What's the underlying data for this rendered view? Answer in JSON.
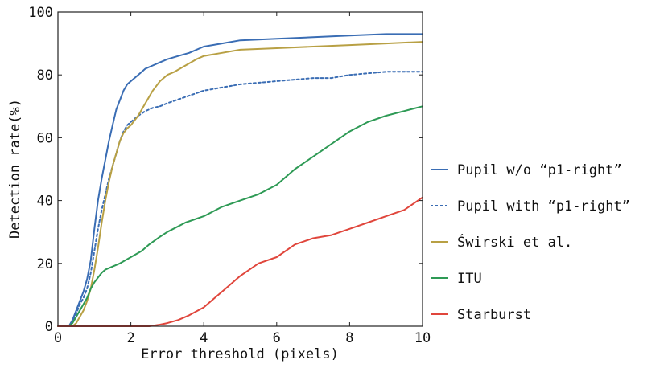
{
  "chart_data": {
    "type": "line",
    "xlabel": "Error threshold (pixels)",
    "ylabel": "Detection rate(%)",
    "xlim": [
      0,
      10
    ],
    "ylim": [
      0,
      100
    ],
    "xticks": [
      "0",
      "2",
      "4",
      "6",
      "8",
      "10"
    ],
    "yticks": [
      "0",
      "20",
      "40",
      "60",
      "80",
      "100"
    ],
    "legend_position": "right",
    "series": [
      {
        "name": "Pupil w/o “p1-right”",
        "color": "#3a6db4",
        "dashed": false,
        "points": [
          [
            0,
            0
          ],
          [
            0.3,
            0
          ],
          [
            0.4,
            2
          ],
          [
            0.5,
            5
          ],
          [
            0.6,
            8
          ],
          [
            0.7,
            11
          ],
          [
            0.8,
            15
          ],
          [
            0.9,
            21
          ],
          [
            1.0,
            31
          ],
          [
            1.1,
            40
          ],
          [
            1.2,
            47
          ],
          [
            1.3,
            53
          ],
          [
            1.4,
            59
          ],
          [
            1.5,
            64
          ],
          [
            1.6,
            69
          ],
          [
            1.7,
            72
          ],
          [
            1.8,
            75
          ],
          [
            1.9,
            77
          ],
          [
            2.0,
            78
          ],
          [
            2.2,
            80
          ],
          [
            2.4,
            82
          ],
          [
            2.6,
            83
          ],
          [
            2.8,
            84
          ],
          [
            3.0,
            85
          ],
          [
            3.3,
            86
          ],
          [
            3.6,
            87
          ],
          [
            4.0,
            89
          ],
          [
            4.5,
            90
          ],
          [
            5.0,
            91
          ],
          [
            6.0,
            91.5
          ],
          [
            7.0,
            92
          ],
          [
            8.0,
            92.5
          ],
          [
            9.0,
            93
          ],
          [
            10.0,
            93
          ]
        ]
      },
      {
        "name": "Pupil with “p1-right”",
        "color": "#3a6db4",
        "dashed": true,
        "points": [
          [
            0,
            0
          ],
          [
            0.3,
            0
          ],
          [
            0.4,
            1.5
          ],
          [
            0.5,
            4
          ],
          [
            0.6,
            7
          ],
          [
            0.7,
            9
          ],
          [
            0.8,
            12
          ],
          [
            0.9,
            17
          ],
          [
            1.0,
            24
          ],
          [
            1.1,
            31
          ],
          [
            1.2,
            37
          ],
          [
            1.3,
            42
          ],
          [
            1.4,
            47
          ],
          [
            1.5,
            51
          ],
          [
            1.6,
            55
          ],
          [
            1.7,
            59
          ],
          [
            1.8,
            62
          ],
          [
            1.9,
            64
          ],
          [
            2.0,
            65
          ],
          [
            2.2,
            67
          ],
          [
            2.4,
            68.5
          ],
          [
            2.6,
            69.5
          ],
          [
            2.8,
            70
          ],
          [
            3.0,
            71
          ],
          [
            3.5,
            73
          ],
          [
            4.0,
            75
          ],
          [
            4.5,
            76
          ],
          [
            5.0,
            77
          ],
          [
            6.0,
            78
          ],
          [
            7.0,
            79
          ],
          [
            7.5,
            79
          ],
          [
            8.0,
            80
          ],
          [
            9.0,
            81
          ],
          [
            10.0,
            81
          ]
        ]
      },
      {
        "name": "Świrski et al.",
        "color": "#b8a044",
        "dashed": false,
        "points": [
          [
            0,
            0
          ],
          [
            0.4,
            0
          ],
          [
            0.5,
            1
          ],
          [
            0.6,
            3
          ],
          [
            0.7,
            5
          ],
          [
            0.8,
            8
          ],
          [
            0.9,
            12
          ],
          [
            1.0,
            18
          ],
          [
            1.1,
            25
          ],
          [
            1.2,
            33
          ],
          [
            1.3,
            40
          ],
          [
            1.4,
            46
          ],
          [
            1.5,
            51
          ],
          [
            1.6,
            55
          ],
          [
            1.7,
            59
          ],
          [
            1.8,
            61.5
          ],
          [
            1.9,
            63
          ],
          [
            2.0,
            64
          ],
          [
            2.2,
            67
          ],
          [
            2.4,
            71
          ],
          [
            2.6,
            75
          ],
          [
            2.8,
            78
          ],
          [
            3.0,
            80
          ],
          [
            3.2,
            81
          ],
          [
            3.5,
            83
          ],
          [
            3.8,
            85
          ],
          [
            4.0,
            86
          ],
          [
            4.5,
            87
          ],
          [
            5.0,
            88
          ],
          [
            6.0,
            88.5
          ],
          [
            7.0,
            89
          ],
          [
            8.0,
            89.5
          ],
          [
            9.0,
            90
          ],
          [
            10.0,
            90.5
          ]
        ]
      },
      {
        "name": "ITU",
        "color": "#2e9a55",
        "dashed": false,
        "points": [
          [
            0,
            0
          ],
          [
            0.3,
            0
          ],
          [
            0.4,
            1
          ],
          [
            0.5,
            3
          ],
          [
            0.6,
            5
          ],
          [
            0.7,
            7
          ],
          [
            0.8,
            9
          ],
          [
            0.9,
            12
          ],
          [
            1.0,
            14
          ],
          [
            1.1,
            15.5
          ],
          [
            1.2,
            17
          ],
          [
            1.3,
            18
          ],
          [
            1.5,
            19
          ],
          [
            1.7,
            20
          ],
          [
            2.0,
            22
          ],
          [
            2.3,
            24
          ],
          [
            2.5,
            26
          ],
          [
            2.8,
            28.5
          ],
          [
            3.0,
            30
          ],
          [
            3.5,
            33
          ],
          [
            4.0,
            35
          ],
          [
            4.5,
            38
          ],
          [
            5.0,
            40
          ],
          [
            5.5,
            42
          ],
          [
            6.0,
            45
          ],
          [
            6.5,
            50
          ],
          [
            7.0,
            54
          ],
          [
            7.5,
            58
          ],
          [
            8.0,
            62
          ],
          [
            8.5,
            65
          ],
          [
            9.0,
            67
          ],
          [
            9.5,
            68.5
          ],
          [
            10.0,
            70
          ]
        ]
      },
      {
        "name": "Starburst",
        "color": "#e0463c",
        "dashed": false,
        "points": [
          [
            0,
            0
          ],
          [
            2.5,
            0
          ],
          [
            2.8,
            0.5
          ],
          [
            3.0,
            1
          ],
          [
            3.3,
            2
          ],
          [
            3.6,
            3.5
          ],
          [
            4.0,
            6
          ],
          [
            4.3,
            9
          ],
          [
            4.6,
            12
          ],
          [
            5.0,
            16
          ],
          [
            5.5,
            20
          ],
          [
            6.0,
            22
          ],
          [
            6.5,
            26
          ],
          [
            7.0,
            28
          ],
          [
            7.5,
            29
          ],
          [
            8.0,
            31
          ],
          [
            8.5,
            33
          ],
          [
            9.0,
            35
          ],
          [
            9.5,
            37
          ],
          [
            10.0,
            41
          ]
        ]
      }
    ]
  }
}
